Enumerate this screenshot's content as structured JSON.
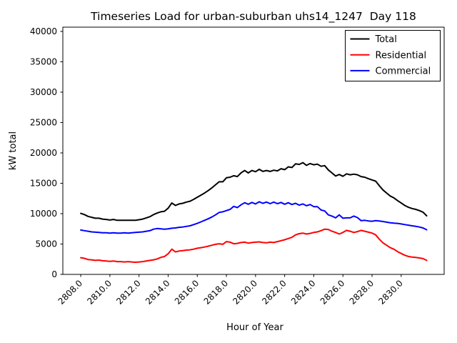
{
  "chart_data": {
    "type": "line",
    "title": "Timeseries Load for urban-suburban uhs14_1247  Day 118",
    "xlabel": "Hour of Year",
    "ylabel": "kW total",
    "grid": false,
    "xlim": [
      2806.77,
      2832.95
    ],
    "ylim": [
      0,
      40700
    ],
    "xticks": [
      2808,
      2810,
      2812,
      2814,
      2816,
      2818,
      2820,
      2822,
      2824,
      2826,
      2828,
      2830
    ],
    "xtick_labels": [
      "2808.0",
      "2810.0",
      "2812.0",
      "2814.0",
      "2816.0",
      "2818.0",
      "2820.0",
      "2822.0",
      "2824.0",
      "2826.0",
      "2828.0",
      "2830.0"
    ],
    "yticks": [
      0,
      5000,
      10000,
      15000,
      20000,
      25000,
      30000,
      35000,
      40000
    ],
    "ytick_labels": [
      "0",
      "5000",
      "10000",
      "15000",
      "20000",
      "25000",
      "30000",
      "35000",
      "40000"
    ],
    "legend": {
      "position": "upper right",
      "entries": [
        "Total",
        "Residential",
        "Commercial"
      ]
    },
    "x": [
      2808.0,
      2808.25,
      2808.5,
      2808.75,
      2809.0,
      2809.25,
      2809.5,
      2809.75,
      2810.0,
      2810.25,
      2810.5,
      2810.75,
      2811.0,
      2811.25,
      2811.5,
      2811.75,
      2812.0,
      2812.25,
      2812.5,
      2812.75,
      2813.0,
      2813.25,
      2813.5,
      2813.75,
      2814.0,
      2814.25,
      2814.5,
      2814.75,
      2815.0,
      2815.25,
      2815.5,
      2815.75,
      2816.0,
      2816.25,
      2816.5,
      2816.75,
      2817.0,
      2817.25,
      2817.5,
      2817.75,
      2818.0,
      2818.25,
      2818.5,
      2818.75,
      2819.0,
      2819.25,
      2819.5,
      2819.75,
      2820.0,
      2820.25,
      2820.5,
      2820.75,
      2821.0,
      2821.25,
      2821.5,
      2821.75,
      2822.0,
      2822.25,
      2822.5,
      2822.75,
      2823.0,
      2823.25,
      2823.5,
      2823.75,
      2824.0,
      2824.25,
      2824.5,
      2824.75,
      2825.0,
      2825.25,
      2825.5,
      2825.75,
      2826.0,
      2826.25,
      2826.5,
      2826.75,
      2827.0,
      2827.25,
      2827.5,
      2827.75,
      2828.0,
      2828.25,
      2828.5,
      2828.75,
      2829.0,
      2829.25,
      2829.5,
      2829.75,
      2830.0,
      2830.25,
      2830.5,
      2830.75,
      2831.0,
      2831.25,
      2831.5,
      2831.75
    ],
    "series": [
      {
        "name": "Total",
        "color": "#000000",
        "values": [
          10050,
          9850,
          9550,
          9400,
          9250,
          9250,
          9100,
          9050,
          8950,
          9050,
          8900,
          8900,
          8900,
          8900,
          8900,
          8900,
          9000,
          9100,
          9300,
          9500,
          9850,
          10100,
          10300,
          10400,
          10900,
          11750,
          11350,
          11600,
          11700,
          11900,
          12050,
          12350,
          12700,
          13050,
          13400,
          13800,
          14250,
          14750,
          15250,
          15250,
          15900,
          16000,
          16250,
          16100,
          16700,
          17100,
          16700,
          17100,
          16900,
          17300,
          16950,
          17100,
          16950,
          17150,
          17050,
          17400,
          17250,
          17700,
          17600,
          18200,
          18100,
          18400,
          17950,
          18250,
          18050,
          18150,
          17800,
          17900,
          17200,
          16700,
          16200,
          16450,
          16150,
          16550,
          16400,
          16500,
          16400,
          16100,
          16000,
          15750,
          15550,
          15350,
          14600,
          13900,
          13400,
          12900,
          12600,
          12150,
          11750,
          11350,
          11050,
          10850,
          10700,
          10500,
          10250,
          9650
        ]
      },
      {
        "name": "Residential",
        "color": "#ff0000",
        "values": [
          2750,
          2650,
          2450,
          2400,
          2300,
          2350,
          2250,
          2200,
          2150,
          2200,
          2100,
          2100,
          2050,
          2100,
          2050,
          2000,
          2050,
          2100,
          2200,
          2300,
          2400,
          2550,
          2800,
          2950,
          3400,
          4150,
          3700,
          3850,
          3900,
          4000,
          4050,
          4150,
          4300,
          4400,
          4500,
          4650,
          4800,
          4950,
          5050,
          4950,
          5400,
          5300,
          5050,
          5100,
          5250,
          5300,
          5150,
          5250,
          5300,
          5350,
          5250,
          5200,
          5300,
          5250,
          5400,
          5550,
          5700,
          5900,
          6100,
          6500,
          6700,
          6800,
          6650,
          6750,
          6900,
          7000,
          7200,
          7450,
          7400,
          7100,
          6900,
          6650,
          6900,
          7250,
          7100,
          6900,
          7050,
          7250,
          7100,
          6950,
          6800,
          6500,
          5800,
          5200,
          4800,
          4400,
          4150,
          3750,
          3450,
          3150,
          2950,
          2850,
          2800,
          2700,
          2600,
          2300
        ]
      },
      {
        "name": "Commercial",
        "color": "#0000ff",
        "values": [
          7300,
          7200,
          7100,
          7000,
          6950,
          6900,
          6850,
          6850,
          6800,
          6850,
          6800,
          6800,
          6850,
          6800,
          6850,
          6900,
          6950,
          7000,
          7100,
          7200,
          7450,
          7550,
          7500,
          7450,
          7500,
          7600,
          7650,
          7750,
          7800,
          7900,
          8000,
          8200,
          8400,
          8650,
          8900,
          9150,
          9450,
          9800,
          10200,
          10300,
          10500,
          10700,
          11200,
          11000,
          11450,
          11800,
          11550,
          11850,
          11600,
          11950,
          11700,
          11900,
          11650,
          11900,
          11650,
          11850,
          11550,
          11800,
          11500,
          11700,
          11400,
          11600,
          11300,
          11500,
          11150,
          11150,
          10600,
          10450,
          9800,
          9600,
          9300,
          9800,
          9250,
          9300,
          9300,
          9600,
          9350,
          8850,
          8900,
          8800,
          8750,
          8850,
          8800,
          8700,
          8600,
          8500,
          8450,
          8400,
          8300,
          8200,
          8100,
          8000,
          7900,
          7800,
          7650,
          7350
        ]
      }
    ]
  }
}
